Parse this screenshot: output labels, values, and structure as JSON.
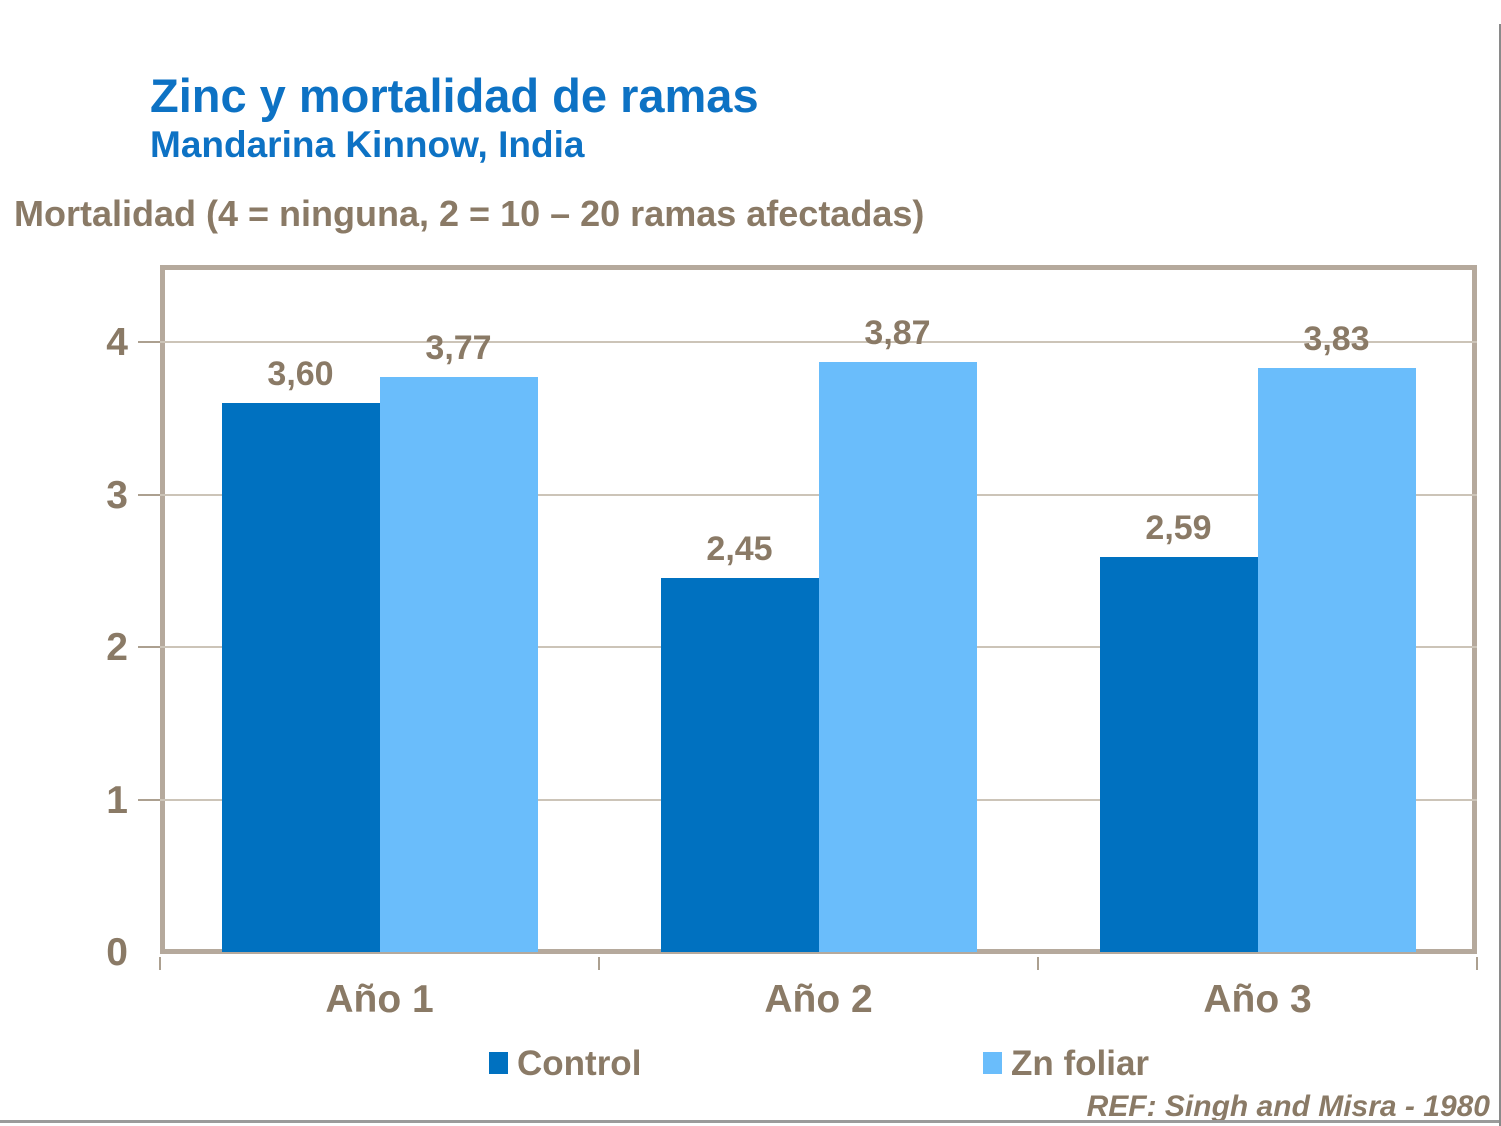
{
  "header": {
    "title": "Zinc y mortalidad de ramas",
    "subtitle": "Mandarina Kinnow, India"
  },
  "footer": {
    "reference": "REF: Singh and Misra - 1980"
  },
  "colors": {
    "title_blue": "#0d72c4",
    "text_brown": "#8a7a66",
    "control_bar": "#0071c0",
    "zn_foliar_bar": "#6abdfb",
    "plot_border": "#b5a99c",
    "gridline": "#ccc4b8",
    "window_edge": "#9b9b9b"
  },
  "chart_data": {
    "type": "bar",
    "title": "Zinc y mortalidad de ramas",
    "subtitle": "Mandarina Kinnow, India",
    "ylabel": "Mortalidad (4 = ninguna, 2 = 10 – 20 ramas afectadas)",
    "xlabel": "",
    "categories": [
      "Año 1",
      "Año 2",
      "Año 3"
    ],
    "series": [
      {
        "name": "Control",
        "color": "#0071c0",
        "values": [
          3.6,
          2.45,
          2.59
        ],
        "labels": [
          "3,60",
          "2,45",
          "2,59"
        ]
      },
      {
        "name": "Zn foliar",
        "color": "#6abdfb",
        "values": [
          3.77,
          3.87,
          3.83
        ],
        "labels": [
          "3,77",
          "3,87",
          "3,83"
        ]
      }
    ],
    "ylim": [
      0,
      4.5
    ],
    "yticks": [
      0,
      1,
      2,
      3,
      4
    ],
    "grid": true,
    "legend_position": "bottom"
  }
}
